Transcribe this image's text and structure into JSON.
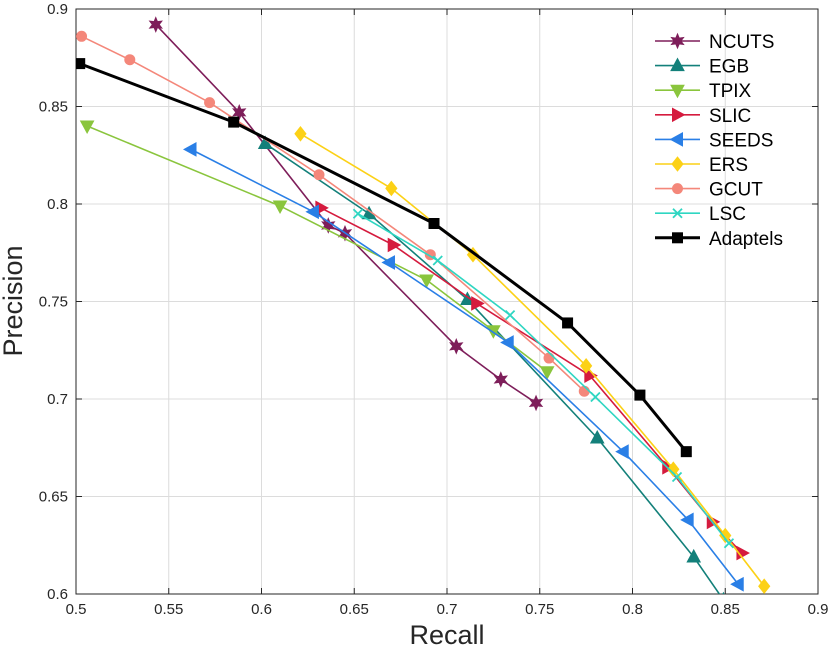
{
  "chart_data": {
    "type": "line",
    "title": "",
    "xlabel": "Recall",
    "ylabel": "Precision",
    "xlim": [
      0.5,
      0.9
    ],
    "ylim": [
      0.6,
      0.9
    ],
    "xticks": [
      0.5,
      0.55,
      0.6,
      0.65,
      0.7,
      0.75,
      0.8,
      0.85,
      0.9
    ],
    "yticks": [
      0.6,
      0.65,
      0.7,
      0.75,
      0.8,
      0.85,
      0.9
    ],
    "xtick_labels": [
      "0.5",
      "0.55",
      "0.6",
      "0.65",
      "0.7",
      "0.75",
      "0.8",
      "0.85",
      "0.9"
    ],
    "ytick_labels": [
      "0.6",
      "0.65",
      "0.7",
      "0.75",
      "0.8",
      "0.85",
      "0.9"
    ],
    "grid": true,
    "legend_position": "top-right",
    "series": [
      {
        "name": "NCUTS",
        "color": "#7e1e5a",
        "marker": "hexagram",
        "points": [
          [
            0.543,
            0.892
          ],
          [
            0.588,
            0.847
          ],
          [
            0.636,
            0.789
          ],
          [
            0.645,
            0.785
          ],
          [
            0.705,
            0.727
          ],
          [
            0.729,
            0.71
          ],
          [
            0.748,
            0.698
          ]
        ]
      },
      {
        "name": "EGB",
        "color": "#13807a",
        "marker": "triangle-up",
        "points": [
          [
            0.602,
            0.831
          ],
          [
            0.658,
            0.795
          ],
          [
            0.711,
            0.751
          ],
          [
            0.781,
            0.68
          ],
          [
            0.833,
            0.619
          ],
          [
            0.849,
            0.597
          ]
        ]
      },
      {
        "name": "TPIX",
        "color": "#8ac53d",
        "marker": "triangle-down",
        "points": [
          [
            0.506,
            0.84
          ],
          [
            0.61,
            0.799
          ],
          [
            0.689,
            0.761
          ],
          [
            0.725,
            0.735
          ],
          [
            0.754,
            0.714
          ]
        ]
      },
      {
        "name": "SLIC",
        "color": "#d51b3e",
        "marker": "triangle-right",
        "points": [
          [
            0.632,
            0.798
          ],
          [
            0.671,
            0.779
          ],
          [
            0.716,
            0.749
          ],
          [
            0.777,
            0.712
          ],
          [
            0.819,
            0.665
          ],
          [
            0.843,
            0.637
          ],
          [
            0.859,
            0.621
          ]
        ]
      },
      {
        "name": "SEEDS",
        "color": "#2a7fe6",
        "marker": "triangle-left",
        "points": [
          [
            0.562,
            0.828
          ],
          [
            0.628,
            0.796
          ],
          [
            0.669,
            0.77
          ],
          [
            0.733,
            0.729
          ],
          [
            0.795,
            0.673
          ],
          [
            0.83,
            0.638
          ],
          [
            0.857,
            0.605
          ]
        ]
      },
      {
        "name": "ERS",
        "color": "#fcd116",
        "marker": "diamond",
        "points": [
          [
            0.621,
            0.836
          ],
          [
            0.67,
            0.808
          ],
          [
            0.714,
            0.774
          ],
          [
            0.775,
            0.717
          ],
          [
            0.822,
            0.664
          ],
          [
            0.85,
            0.63
          ],
          [
            0.871,
            0.604
          ]
        ]
      },
      {
        "name": "GCUT",
        "color": "#f4877a",
        "marker": "circle",
        "points": [
          [
            0.503,
            0.886
          ],
          [
            0.529,
            0.874
          ],
          [
            0.572,
            0.852
          ],
          [
            0.631,
            0.815
          ],
          [
            0.691,
            0.774
          ],
          [
            0.755,
            0.721
          ],
          [
            0.774,
            0.704
          ]
        ]
      },
      {
        "name": "LSC",
        "color": "#2fd6c2",
        "marker": "x",
        "points": [
          [
            0.652,
            0.795
          ],
          [
            0.695,
            0.771
          ],
          [
            0.734,
            0.743
          ],
          [
            0.78,
            0.701
          ],
          [
            0.824,
            0.66
          ],
          [
            0.852,
            0.626
          ]
        ]
      },
      {
        "name": "Adaptels",
        "color": "#000000",
        "marker": "square",
        "linewidth": 3,
        "points": [
          [
            0.502,
            0.872
          ],
          [
            0.585,
            0.842
          ],
          [
            0.693,
            0.79
          ],
          [
            0.765,
            0.739
          ],
          [
            0.804,
            0.702
          ],
          [
            0.829,
            0.673
          ]
        ]
      }
    ]
  }
}
